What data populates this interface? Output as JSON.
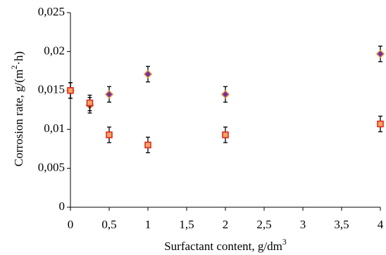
{
  "chart_data": {
    "type": "scatter",
    "xlabel": [
      "Surfactant content, g/dm",
      "3"
    ],
    "ylabel": [
      "Corrosion  rate,  g/(m",
      "2",
      "·h)"
    ],
    "x": [
      0,
      0.25,
      0.5,
      1,
      2,
      4
    ],
    "series": [
      {
        "marker": "diamond",
        "color": "#7030a0",
        "edgecolor": "#e08a3c",
        "values": [
          0.015,
          0.0131,
          0.0145,
          0.0171,
          0.0145,
          0.0197
        ],
        "errors": [
          0.001,
          0.001,
          0.001,
          0.001,
          0.001,
          0.001
        ]
      },
      {
        "marker": "square",
        "color": "#f4a460",
        "edgecolor": "#e0201a",
        "values": [
          0.015,
          0.0134,
          0.0093,
          0.008,
          0.0093,
          0.0107
        ],
        "errors": [
          0.001,
          0.001,
          0.001,
          0.001,
          0.001,
          0.001
        ]
      }
    ],
    "xlim": [
      0,
      4
    ],
    "xticks": [
      0,
      {
        "value": 0.5,
        "label": "0,5"
      },
      1,
      {
        "value": 1.5,
        "label": "1,5"
      },
      2,
      {
        "value": 2.5,
        "label": "2,5"
      },
      3,
      {
        "value": 3.5,
        "label": "3,5"
      },
      4
    ],
    "ylim": [
      0,
      0.025
    ],
    "yticks": [
      0,
      {
        "value": 0.005,
        "label": "0,005"
      },
      {
        "value": 0.01,
        "label": "0,01"
      },
      {
        "value": 0.015,
        "label": "0,015"
      },
      {
        "value": 0.02,
        "label": "0,02"
      },
      {
        "value": 0.025,
        "label": "0,025"
      }
    ]
  }
}
